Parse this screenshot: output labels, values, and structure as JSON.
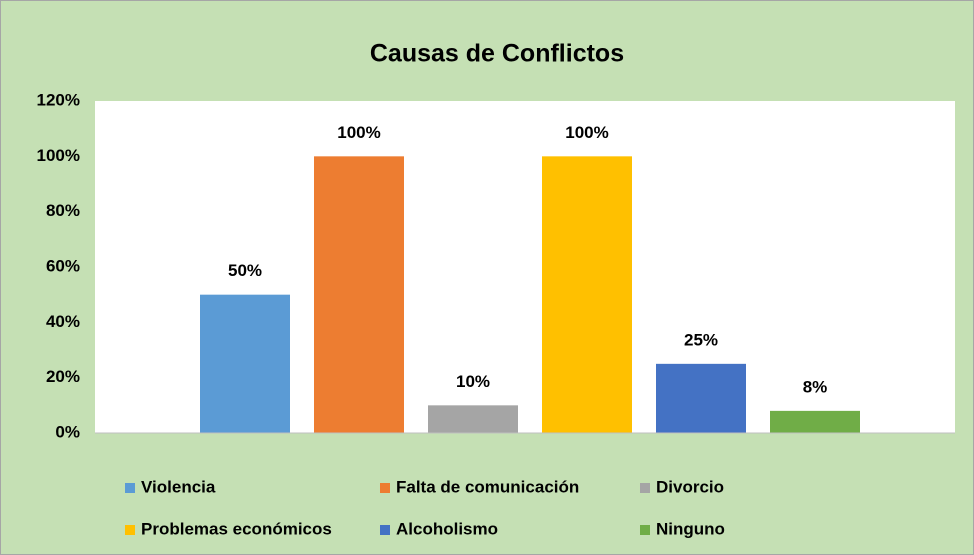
{
  "chart_data": {
    "type": "bar",
    "title": "Causas de Conflictos",
    "categories": [
      null
    ],
    "series": [
      {
        "name": "Violencia",
        "color": "#5b9bd5",
        "values": [
          50
        ],
        "value_labels": [
          "50%"
        ]
      },
      {
        "name": "Falta de comunicación",
        "color": "#ed7d31",
        "values": [
          100
        ],
        "value_labels": [
          "100%"
        ]
      },
      {
        "name": "Divorcio",
        "color": "#a5a5a5",
        "values": [
          10
        ],
        "value_labels": [
          "10%"
        ]
      },
      {
        "name": "Problemas económicos",
        "color": "#ffc000",
        "values": [
          100
        ],
        "value_labels": [
          "100%"
        ]
      },
      {
        "name": "Alcoholismo",
        "color": "#4472c4",
        "values": [
          25
        ],
        "value_labels": [
          "25%"
        ]
      },
      {
        "name": "Ninguno",
        "color": "#70ad47",
        "values": [
          8
        ],
        "value_labels": [
          "8%"
        ]
      }
    ],
    "ylim": [
      0,
      120
    ],
    "yticks": [
      {
        "value": 0,
        "label": "0%"
      },
      {
        "value": 20,
        "label": "20%"
      },
      {
        "value": 40,
        "label": "40%"
      },
      {
        "value": 60,
        "label": "60%"
      },
      {
        "value": 80,
        "label": "80%"
      },
      {
        "value": 100,
        "label": "100%"
      },
      {
        "value": 120,
        "label": "120%"
      }
    ],
    "grid": false,
    "legend": "bottom"
  }
}
